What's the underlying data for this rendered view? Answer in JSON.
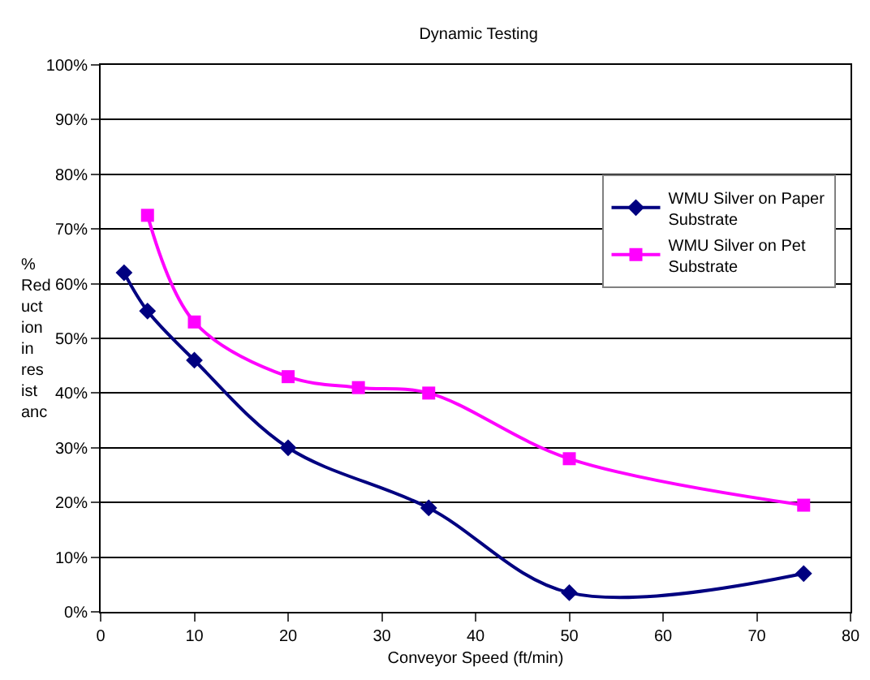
{
  "chart_data": {
    "type": "line",
    "title": "Dynamic Testing",
    "xlabel": "Conveyor Speed (ft/min)",
    "ylabel": "% Reduction in resistanc",
    "series": [
      {
        "name": "WMU Silver on Paper Substrate",
        "color": "#000080",
        "marker": "diamond",
        "x": [
          2.5,
          5,
          10,
          20,
          35,
          50,
          75
        ],
        "values": [
          62,
          55,
          46,
          30,
          19,
          3.5,
          7
        ]
      },
      {
        "name": "WMU Silver on Pet Substrate",
        "color": "#ff00ff",
        "marker": "square",
        "x": [
          5,
          10,
          20,
          27.5,
          35,
          50,
          75
        ],
        "values": [
          72.5,
          53,
          43,
          41,
          40,
          28,
          19.5
        ]
      }
    ],
    "xlim": [
      0,
      80
    ],
    "xticks": [
      0,
      10,
      20,
      30,
      40,
      50,
      60,
      70,
      80
    ],
    "ylim": [
      0,
      100
    ],
    "yticks": [
      {
        "value": 0,
        "label": "0%"
      },
      {
        "value": 10,
        "label": "10%"
      },
      {
        "value": 20,
        "label": "20%"
      },
      {
        "value": 30,
        "label": "30%"
      },
      {
        "value": 40,
        "label": "40%"
      },
      {
        "value": 50,
        "label": "50%"
      },
      {
        "value": 60,
        "label": "60%"
      },
      {
        "value": 70,
        "label": "70%"
      },
      {
        "value": 80,
        "label": "80%"
      },
      {
        "value": 90,
        "label": "90%"
      },
      {
        "value": 100,
        "label": "100%"
      }
    ],
    "grid": "y",
    "legend": "top right",
    "line_style": "solid"
  }
}
